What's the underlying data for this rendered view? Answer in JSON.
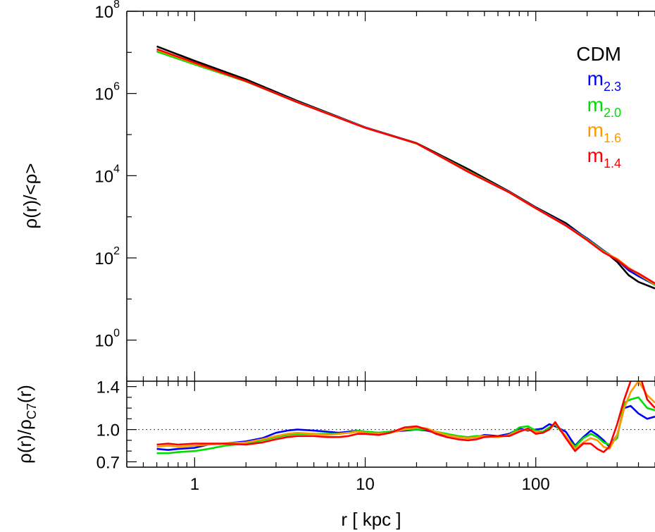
{
  "chart_data": [
    {
      "type": "line",
      "panel": "top",
      "x_scale": "log",
      "y_scale": "log",
      "xlim": [
        0.4,
        500
      ],
      "ylim": [
        0.1,
        100000000
      ],
      "ylabel": "ρ(r)/<ρ>",
      "y_ticks": [
        {
          "value": 1,
          "base": "10",
          "exp": "0"
        },
        {
          "value": 100,
          "base": "10",
          "exp": "2"
        },
        {
          "value": 10000,
          "base": "10",
          "exp": "4"
        },
        {
          "value": 1000000,
          "base": "10",
          "exp": "6"
        },
        {
          "value": 100000000,
          "base": "10",
          "exp": "8"
        }
      ],
      "legend": {
        "placement": "top-right",
        "entries": [
          {
            "label": "CDM",
            "base": "CDM",
            "sub": "",
            "color": "#000000"
          },
          {
            "label": "m2.3",
            "base": "m",
            "sub": "2.3",
            "color": "#0000ff"
          },
          {
            "label": "m2.0",
            "base": "m",
            "sub": "2.0",
            "color": "#00dd00"
          },
          {
            "label": "m1.6",
            "base": "m",
            "sub": "1.6",
            "color": "#ff9900"
          },
          {
            "label": "m1.4",
            "base": "m",
            "sub": "1.4",
            "color": "#ff0000"
          }
        ]
      },
      "series": [
        {
          "name": "CDM",
          "color": "#000000",
          "x": [
            0.6,
            1,
            2,
            4,
            10,
            20,
            40,
            70,
            100,
            150,
            200,
            250,
            300,
            350,
            400,
            500
          ],
          "y": [
            14000000,
            6200000,
            2200000,
            660000,
            150000,
            62000,
            14500,
            4100,
            1700,
            700,
            290,
            150,
            80,
            38,
            26,
            18
          ]
        },
        {
          "name": "m2.3",
          "color": "#0000ff",
          "x": [
            0.6,
            1,
            2,
            4,
            10,
            20,
            40,
            70,
            100,
            150,
            200,
            250,
            300,
            350,
            400,
            500
          ],
          "y": [
            11000000,
            5300000,
            2000000,
            630000,
            150000,
            61000,
            13000,
            4000,
            1650,
            640,
            300,
            150,
            90,
            50,
            36,
            22
          ]
        },
        {
          "name": "m2.0",
          "color": "#00dd00",
          "x": [
            0.6,
            1,
            2,
            4,
            10,
            20,
            40,
            70,
            100,
            150,
            200,
            250,
            300,
            350,
            400,
            500
          ],
          "y": [
            10500000,
            5100000,
            1950000,
            620000,
            148000,
            60500,
            13000,
            3950,
            1620,
            620,
            285,
            145,
            92,
            56,
            40,
            22
          ]
        },
        {
          "name": "m1.6",
          "color": "#ff9900",
          "x": [
            0.6,
            1,
            2,
            4,
            10,
            20,
            40,
            70,
            100,
            150,
            200,
            250,
            300,
            350,
            400,
            500
          ],
          "y": [
            11500000,
            5400000,
            2000000,
            620000,
            147000,
            61000,
            12800,
            3950,
            1620,
            620,
            275,
            140,
            95,
            58,
            40,
            23
          ]
        },
        {
          "name": "m1.4",
          "color": "#ff0000",
          "x": [
            0.6,
            1,
            2,
            4,
            10,
            20,
            40,
            70,
            100,
            150,
            200,
            250,
            300,
            350,
            400,
            500
          ],
          "y": [
            12000000,
            5600000,
            2000000,
            610000,
            146000,
            61000,
            12500,
            3900,
            1610,
            610,
            270,
            135,
            90,
            55,
            42,
            24
          ]
        }
      ]
    },
    {
      "type": "line",
      "panel": "bottom",
      "x_scale": "log",
      "xlim": [
        0.4,
        500
      ],
      "ylim": [
        0.65,
        1.45
      ],
      "xlabel": "r [ kpc ]",
      "ylabel": "ρ(r)/ρC7(r)",
      "ylabel_parts": {
        "pre": "ρ(r)/ρ",
        "sub": "C7",
        "post": "(r)"
      },
      "x_ticks": [
        {
          "value": 1,
          "label": "1"
        },
        {
          "value": 10,
          "label": "10"
        },
        {
          "value": 100,
          "label": "100"
        }
      ],
      "y_ticks": [
        {
          "value": 0.7,
          "label": "0.7"
        },
        {
          "value": 1.0,
          "label": "1.0"
        },
        {
          "value": 1.4,
          "label": "1.4"
        }
      ],
      "reference_line": {
        "y": 1.0,
        "style": "dotted"
      },
      "series": [
        {
          "name": "m2.3",
          "color": "#0000ff",
          "x": [
            0.6,
            0.7,
            0.8,
            1,
            1.2,
            1.5,
            2,
            2.5,
            3,
            3.5,
            4,
            5,
            6,
            7,
            8,
            9,
            10,
            12,
            14,
            17,
            20,
            23,
            26,
            30,
            35,
            40,
            45,
            50,
            60,
            70,
            80,
            90,
            100,
            110,
            120,
            130,
            150,
            170,
            190,
            210,
            230,
            250,
            270,
            300,
            330,
            360,
            400,
            450,
            500
          ],
          "y": [
            0.82,
            0.81,
            0.82,
            0.83,
            0.86,
            0.87,
            0.89,
            0.92,
            0.97,
            0.99,
            1.0,
            0.99,
            0.98,
            0.97,
            0.98,
            0.99,
            0.98,
            0.97,
            0.98,
            0.99,
            1.0,
            0.99,
            0.97,
            0.95,
            0.93,
            0.92,
            0.93,
            0.95,
            0.94,
            0.96,
            1.01,
            0.99,
            1.0,
            1.01,
            1.05,
            1.03,
            0.98,
            0.85,
            0.93,
            0.99,
            0.95,
            0.9,
            0.84,
            0.95,
            1.2,
            1.22,
            1.15,
            1.1,
            1.12
          ]
        },
        {
          "name": "m2.0",
          "color": "#00dd00",
          "x": [
            0.6,
            0.7,
            0.8,
            1,
            1.2,
            1.5,
            2,
            2.5,
            3,
            3.5,
            4,
            5,
            6,
            7,
            8,
            9,
            10,
            12,
            14,
            17,
            20,
            23,
            26,
            30,
            35,
            40,
            45,
            50,
            60,
            70,
            80,
            90,
            100,
            110,
            120,
            130,
            150,
            170,
            190,
            210,
            230,
            250,
            270,
            300,
            330,
            360,
            400,
            450,
            500
          ],
          "y": [
            0.78,
            0.78,
            0.79,
            0.8,
            0.82,
            0.85,
            0.87,
            0.9,
            0.93,
            0.95,
            0.96,
            0.96,
            0.96,
            0.96,
            0.97,
            0.99,
            0.98,
            0.97,
            0.98,
            1.0,
            1.0,
            1.0,
            0.98,
            0.96,
            0.94,
            0.93,
            0.94,
            0.94,
            0.93,
            0.95,
            1.02,
            1.03,
            0.99,
            0.98,
            1.02,
            1.05,
            0.93,
            0.84,
            0.92,
            0.96,
            0.93,
            0.88,
            0.86,
            0.92,
            1.25,
            1.28,
            1.3,
            1.2,
            1.18
          ]
        },
        {
          "name": "m1.6",
          "color": "#ff9900",
          "x": [
            0.6,
            0.7,
            0.8,
            1,
            1.2,
            1.5,
            2,
            2.5,
            3,
            3.5,
            4,
            5,
            6,
            7,
            8,
            9,
            10,
            12,
            14,
            17,
            20,
            23,
            26,
            30,
            35,
            40,
            45,
            50,
            60,
            70,
            80,
            90,
            100,
            110,
            120,
            130,
            150,
            170,
            190,
            210,
            230,
            250,
            270,
            300,
            330,
            360,
            400,
            450,
            500
          ],
          "y": [
            0.84,
            0.85,
            0.84,
            0.85,
            0.86,
            0.87,
            0.88,
            0.91,
            0.94,
            0.96,
            0.97,
            0.96,
            0.95,
            0.96,
            0.97,
            0.98,
            0.97,
            0.96,
            0.97,
            1.0,
            1.02,
            1.01,
            0.98,
            0.95,
            0.93,
            0.92,
            0.93,
            0.94,
            0.93,
            0.95,
            0.99,
            1.0,
            0.98,
            0.97,
            1.0,
            1.06,
            0.94,
            0.82,
            0.88,
            0.92,
            0.9,
            0.84,
            0.82,
            0.95,
            1.2,
            1.35,
            1.45,
            1.32,
            1.25
          ]
        },
        {
          "name": "m1.4",
          "color": "#ff0000",
          "x": [
            0.6,
            0.7,
            0.8,
            1,
            1.2,
            1.5,
            2,
            2.5,
            3,
            3.5,
            4,
            5,
            6,
            7,
            8,
            9,
            10,
            12,
            14,
            17,
            20,
            23,
            26,
            30,
            35,
            40,
            45,
            50,
            60,
            70,
            80,
            90,
            100,
            110,
            120,
            130,
            150,
            170,
            190,
            210,
            230,
            250,
            270,
            300,
            330,
            360,
            400,
            450,
            500
          ],
          "y": [
            0.86,
            0.87,
            0.86,
            0.87,
            0.87,
            0.87,
            0.86,
            0.88,
            0.91,
            0.93,
            0.94,
            0.94,
            0.93,
            0.93,
            0.94,
            0.96,
            0.96,
            0.95,
            0.97,
            1.02,
            1.03,
            1.0,
            0.96,
            0.93,
            0.91,
            0.9,
            0.91,
            0.93,
            0.94,
            0.94,
            0.98,
            1.01,
            0.96,
            0.97,
            1.0,
            1.07,
            0.92,
            0.8,
            0.87,
            0.87,
            0.82,
            0.79,
            0.84,
            1.05,
            1.28,
            1.45,
            1.55,
            1.28,
            1.2
          ]
        }
      ]
    }
  ]
}
